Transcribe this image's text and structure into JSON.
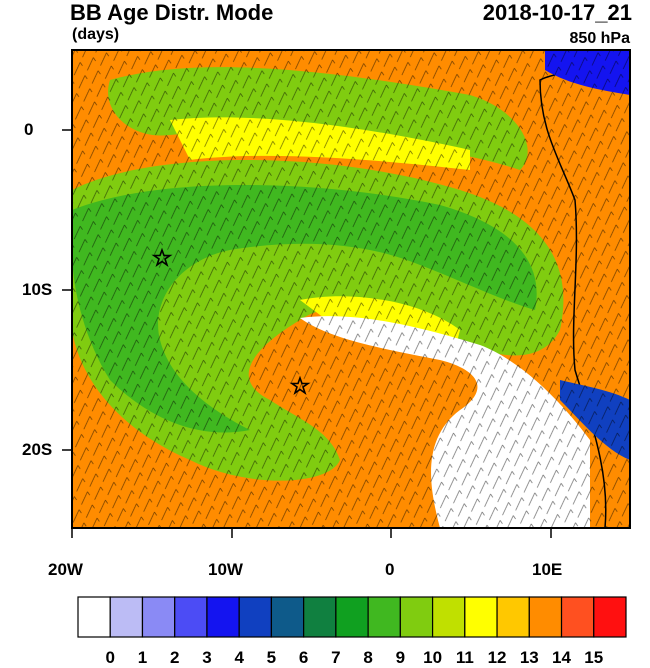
{
  "title": "BB Age Distr. Mode",
  "units": "(days)",
  "datetime": "2018-10-17_21",
  "level": "850 hPa",
  "axes": {
    "lat_labels": [
      "0",
      "10S",
      "20S"
    ],
    "lon_labels": [
      "20W",
      "10W",
      "0",
      "10E"
    ]
  },
  "colorbar": {
    "labels": [
      "0",
      "1",
      "2",
      "3",
      "4",
      "5",
      "6",
      "7",
      "8",
      "9",
      "10",
      "11",
      "12",
      "13",
      "14",
      "15"
    ],
    "colors": [
      "#ffffff",
      "#bcbcf5",
      "#8a8af5",
      "#4c4cf5",
      "#1414f0",
      "#1040c0",
      "#0e5a8a",
      "#108040",
      "#10a020",
      "#40b820",
      "#80cc10",
      "#c0e000",
      "#ffff00",
      "#ffc800",
      "#ff8c00",
      "#ff5020",
      "#ff1010"
    ]
  },
  "map_colors": {
    "ocean_orange": "#ff8c00",
    "green_dark": "#40b820",
    "green": "#80cc10",
    "yellow": "#ffff00",
    "white": "#ffffff",
    "blue": "#1414f0"
  },
  "markers": [
    "star",
    "star"
  ]
}
